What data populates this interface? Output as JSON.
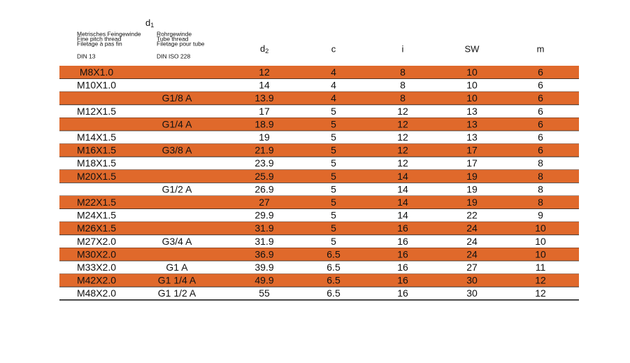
{
  "header": {
    "d1": {
      "main": "d",
      "sub": "1"
    },
    "metric": {
      "lines": [
        "Metrisches Feingewinde",
        "Fine pitch thread",
        "Filetage  à pas fin"
      ],
      "standard": "DIN 13"
    },
    "tube": {
      "lines": [
        "Rohrgewinde",
        "Tube thread",
        "Filetage pour tube"
      ],
      "standard": "DIN ISO 228"
    },
    "d2": {
      "main": "d",
      "sub": "2"
    },
    "c": "c",
    "i": "i",
    "sw": "SW",
    "m": "m"
  },
  "table": {
    "stripe_color": "#e0692b",
    "rows": [
      [
        "M8X1.0",
        null,
        12,
        4,
        8,
        10,
        6
      ],
      [
        "M10X1.0",
        null,
        14,
        4,
        8,
        10,
        6
      ],
      [
        null,
        "G1/8 A",
        13.9,
        4,
        8,
        10,
        6
      ],
      [
        "M12X1.5",
        null,
        17,
        5,
        12,
        13,
        6
      ],
      [
        null,
        "G1/4 A",
        18.9,
        5,
        12,
        13,
        6
      ],
      [
        "M14X1.5",
        null,
        19,
        5,
        12,
        13,
        6
      ],
      [
        "M16X1.5",
        "G3/8 A",
        21.9,
        5,
        12,
        17,
        6
      ],
      [
        "M18X1.5",
        null,
        23.9,
        5,
        12,
        17,
        8
      ],
      [
        "M20X1.5",
        null,
        25.9,
        5,
        14,
        19,
        8
      ],
      [
        null,
        "G1/2 A",
        26.9,
        5,
        14,
        19,
        8
      ],
      [
        "M22X1.5",
        null,
        27,
        5,
        14,
        19,
        8
      ],
      [
        "M24X1.5",
        null,
        29.9,
        5,
        14,
        22,
        9
      ],
      [
        "M26X1.5",
        null,
        31.9,
        5,
        16,
        24,
        10
      ],
      [
        "M27X2.0",
        "G3/4 A",
        31.9,
        5,
        16,
        24,
        10
      ],
      [
        "M30X2.0",
        null,
        36.9,
        6.5,
        16,
        24,
        10
      ],
      [
        "M33X2.0",
        "G1 A",
        39.9,
        6.5,
        16,
        27,
        11
      ],
      [
        "M42X2.0",
        "G1 1/4 A",
        49.9,
        6.5,
        16,
        30,
        12
      ],
      [
        "M48X2.0",
        "G1 1/2 A",
        55,
        6.5,
        16,
        30,
        12
      ]
    ]
  }
}
